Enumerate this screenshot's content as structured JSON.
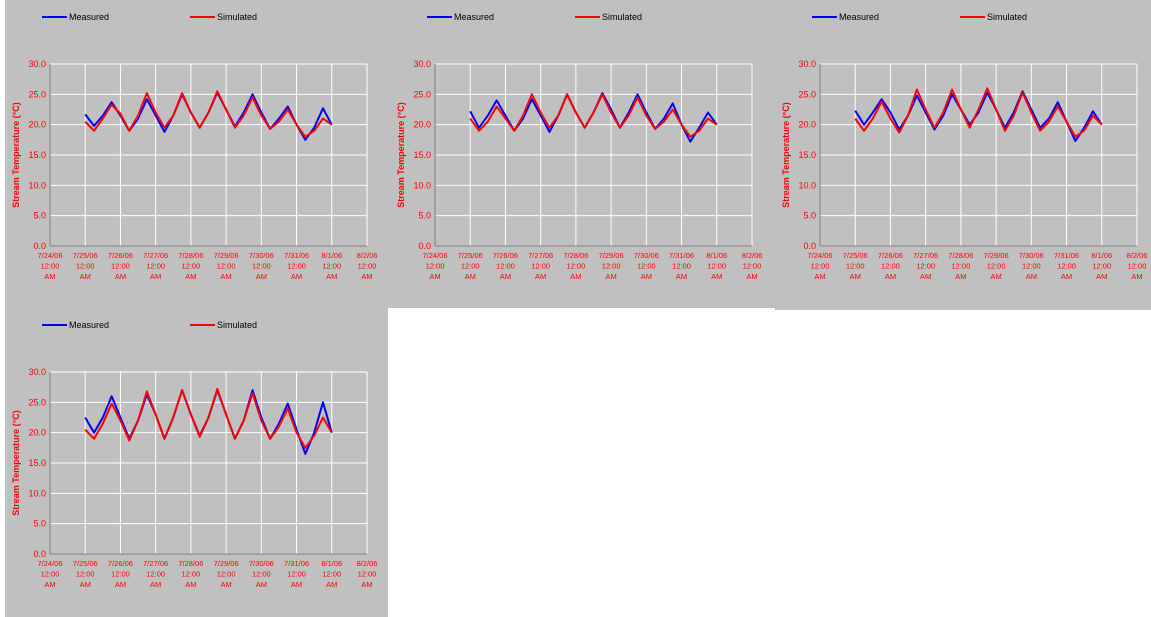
{
  "chart_data": [
    {
      "type": "line",
      "y_label": "Stream Temperature (°C)",
      "x": [
        "7/25/06 12:00 AM",
        "7/25/06 6:00 AM",
        "7/25/06 12:00 PM",
        "7/25/06 6:00 PM",
        "7/26/06 12:00 AM",
        "7/26/06 6:00 AM",
        "7/26/06 12:00 PM",
        "7/26/06 6:00 PM",
        "7/27/06 12:00 AM",
        "7/27/06 6:00 AM",
        "7/27/06 12:00 PM",
        "7/27/06 6:00 PM",
        "7/28/06 12:00 AM",
        "7/28/06 6:00 AM",
        "7/28/06 12:00 PM",
        "7/28/06 6:00 PM",
        "7/29/06 12:00 AM",
        "7/29/06 6:00 AM",
        "7/29/06 12:00 PM",
        "7/29/06 6:00 PM",
        "7/30/06 12:00 AM",
        "7/30/06 6:00 AM",
        "7/30/06 12:00 PM",
        "7/30/06 6:00 PM",
        "7/31/06 12:00 AM",
        "7/31/06 6:00 AM",
        "7/31/06 12:00 PM",
        "7/31/06 6:00 PM",
        "8/1/06 12:00 AM"
      ],
      "series": [
        {
          "name": "Measured",
          "color": "#0000ff",
          "values": [
            21.7,
            19.8,
            21.5,
            23.7,
            21.5,
            19.0,
            21.0,
            24.2,
            21.5,
            18.8,
            21.5,
            25.0,
            22.0,
            19.5,
            22.0,
            25.3,
            22.5,
            19.7,
            22.0,
            25.0,
            22.0,
            19.3,
            21.0,
            23.0,
            20.0,
            17.5,
            19.5,
            22.7,
            20.0
          ]
        },
        {
          "name": "Simulated",
          "color": "#ff0000",
          "values": [
            20.5,
            19.0,
            21.0,
            23.3,
            21.8,
            19.0,
            21.5,
            25.2,
            22.0,
            19.5,
            21.5,
            25.2,
            22.0,
            19.5,
            22.0,
            25.5,
            22.5,
            19.5,
            21.5,
            24.5,
            21.5,
            19.3,
            20.5,
            22.5,
            20.0,
            18.0,
            19.0,
            21.0,
            20.0
          ]
        }
      ],
      "xlim": [
        "7/24/06 12:00 AM",
        "8/2/06 12:00 AM"
      ],
      "xticks": [
        "7/24/06 12:00 AM",
        "7/25/06 12:00 AM",
        "7/26/06 12:00 AM",
        "7/27/06 12:00 AM",
        "7/28/06 12:00 AM",
        "7/29/06 12:00 AM",
        "7/30/06 12:00 AM",
        "7/31/06 12:00 AM",
        "8/1/06 12:00 AM",
        "8/2/06 12:00 AM"
      ],
      "ylim": [
        0,
        30
      ],
      "yticks": [
        {
          "value": 0,
          "label": "0.0"
        },
        {
          "value": 5,
          "label": "5.0"
        },
        {
          "value": 10,
          "label": "10.0"
        },
        {
          "value": 15,
          "label": "15.0"
        },
        {
          "value": 20,
          "label": "20.0"
        },
        {
          "value": 25,
          "label": "25.0"
        },
        {
          "value": 30,
          "label": "30.0"
        }
      ],
      "grid": true,
      "legend": "top"
    },
    {
      "type": "line",
      "y_label": "Stream Temperature (°C)",
      "x": [
        "7/25/06 12:00 AM",
        "7/25/06 6:00 AM",
        "7/25/06 12:00 PM",
        "7/25/06 6:00 PM",
        "7/26/06 12:00 AM",
        "7/26/06 6:00 AM",
        "7/26/06 12:00 PM",
        "7/26/06 6:00 PM",
        "7/27/06 12:00 AM",
        "7/27/06 6:00 AM",
        "7/27/06 12:00 PM",
        "7/27/06 6:00 PM",
        "7/28/06 12:00 AM",
        "7/28/06 6:00 AM",
        "7/28/06 12:00 PM",
        "7/28/06 6:00 PM",
        "7/29/06 12:00 AM",
        "7/29/06 6:00 AM",
        "7/29/06 12:00 PM",
        "7/29/06 6:00 PM",
        "7/30/06 12:00 AM",
        "7/30/06 6:00 AM",
        "7/30/06 12:00 PM",
        "7/30/06 6:00 PM",
        "7/31/06 12:00 AM",
        "7/31/06 6:00 AM",
        "7/31/06 12:00 PM",
        "7/31/06 6:00 PM",
        "8/1/06 12:00 AM"
      ],
      "series": [
        {
          "name": "Measured",
          "color": "#0000ff",
          "values": [
            22.2,
            19.5,
            21.5,
            24.0,
            21.5,
            19.0,
            21.0,
            24.2,
            21.5,
            18.8,
            21.5,
            25.0,
            22.0,
            19.5,
            22.0,
            25.2,
            22.5,
            19.5,
            22.0,
            25.0,
            22.0,
            19.3,
            21.0,
            23.5,
            20.0,
            17.2,
            19.5,
            22.0,
            20.0
          ]
        },
        {
          "name": "Simulated",
          "color": "#ff0000",
          "values": [
            21.0,
            19.0,
            20.5,
            23.0,
            21.0,
            19.0,
            21.5,
            25.0,
            22.0,
            19.5,
            21.5,
            25.0,
            22.0,
            19.5,
            22.0,
            25.0,
            22.0,
            19.5,
            21.5,
            24.5,
            21.5,
            19.3,
            20.5,
            22.5,
            20.0,
            18.0,
            19.0,
            21.0,
            20.0
          ]
        }
      ],
      "xlim": [
        "7/24/06 12:00 AM",
        "8/2/06 12:00 AM"
      ],
      "xticks": [
        "7/24/06 12:00 AM",
        "7/25/06 12:00 AM",
        "7/26/06 12:00 AM",
        "7/27/06 12:00 AM",
        "7/28/06 12:00 AM",
        "7/29/06 12:00 AM",
        "7/30/06 12:00 AM",
        "7/31/06 12:00 AM",
        "8/1/06 12:00 AM",
        "8/2/06 12:00 AM"
      ],
      "ylim": [
        0,
        30
      ],
      "yticks": [
        {
          "value": 0,
          "label": "0.0"
        },
        {
          "value": 5,
          "label": "5.0"
        },
        {
          "value": 10,
          "label": "10.0"
        },
        {
          "value": 15,
          "label": "15.0"
        },
        {
          "value": 20,
          "label": "20.0"
        },
        {
          "value": 25,
          "label": "25.0"
        },
        {
          "value": 30,
          "label": "30.0"
        }
      ],
      "grid": true,
      "legend": "top"
    },
    {
      "type": "line",
      "y_label": "Stream Temperature (°C)",
      "x": [
        "7/25/06 12:00 AM",
        "7/25/06 6:00 AM",
        "7/25/06 12:00 PM",
        "7/25/06 6:00 PM",
        "7/26/06 12:00 AM",
        "7/26/06 6:00 AM",
        "7/26/06 12:00 PM",
        "7/26/06 6:00 PM",
        "7/27/06 12:00 AM",
        "7/27/06 6:00 AM",
        "7/27/06 12:00 PM",
        "7/27/06 6:00 PM",
        "7/28/06 12:00 AM",
        "7/28/06 6:00 AM",
        "7/28/06 12:00 PM",
        "7/28/06 6:00 PM",
        "7/29/06 12:00 AM",
        "7/29/06 6:00 AM",
        "7/29/06 12:00 PM",
        "7/29/06 6:00 PM",
        "7/30/06 12:00 AM",
        "7/30/06 6:00 AM",
        "7/30/06 12:00 PM",
        "7/30/06 6:00 PM",
        "7/31/06 12:00 AM",
        "7/31/06 6:00 AM",
        "7/31/06 12:00 PM",
        "7/31/06 6:00 PM",
        "8/1/06 12:00 AM"
      ],
      "series": [
        {
          "name": "Measured",
          "color": "#0000ff",
          "values": [
            22.3,
            20.0,
            22.0,
            24.2,
            22.0,
            19.2,
            21.5,
            24.8,
            22.0,
            19.2,
            21.5,
            25.0,
            22.5,
            20.0,
            22.0,
            25.3,
            22.5,
            19.5,
            22.0,
            25.5,
            22.5,
            19.5,
            21.0,
            23.7,
            20.5,
            17.3,
            19.5,
            22.2,
            20.0
          ]
        },
        {
          "name": "Simulated",
          "color": "#ff0000",
          "values": [
            21.0,
            19.0,
            21.0,
            23.8,
            21.0,
            18.7,
            21.5,
            25.8,
            22.5,
            19.5,
            22.0,
            25.8,
            22.5,
            19.5,
            22.5,
            26.0,
            22.5,
            19.0,
            21.5,
            25.3,
            22.0,
            19.0,
            20.5,
            23.0,
            20.5,
            18.0,
            19.0,
            21.5,
            20.0
          ]
        }
      ],
      "xlim": [
        "7/24/06 12:00 AM",
        "8/2/06 12:00 AM"
      ],
      "xticks": [
        "7/24/06 12:00 AM",
        "7/25/06 12:00 AM",
        "7/26/06 12:00 AM",
        "7/27/06 12:00 AM",
        "7/28/06 12:00 AM",
        "7/29/06 12:00 AM",
        "7/30/06 12:00 AM",
        "7/31/06 12:00 AM",
        "8/1/06 12:00 AM",
        "8/2/06 12:00 AM"
      ],
      "ylim": [
        0,
        30
      ],
      "yticks": [
        {
          "value": 0,
          "label": "0.0"
        },
        {
          "value": 5,
          "label": "5.0"
        },
        {
          "value": 10,
          "label": "10.0"
        },
        {
          "value": 15,
          "label": "15.0"
        },
        {
          "value": 20,
          "label": "20.0"
        },
        {
          "value": 25,
          "label": "25.0"
        },
        {
          "value": 30,
          "label": "30.0"
        }
      ],
      "grid": true,
      "legend": "top"
    },
    {
      "type": "line",
      "y_label": "Stream Temperature (°C)",
      "x": [
        "7/25/06 12:00 AM",
        "7/25/06 6:00 AM",
        "7/25/06 12:00 PM",
        "7/25/06 6:00 PM",
        "7/26/06 12:00 AM",
        "7/26/06 6:00 AM",
        "7/26/06 12:00 PM",
        "7/26/06 6:00 PM",
        "7/27/06 12:00 AM",
        "7/27/06 6:00 AM",
        "7/27/06 12:00 PM",
        "7/27/06 6:00 PM",
        "7/28/06 12:00 AM",
        "7/28/06 6:00 AM",
        "7/28/06 12:00 PM",
        "7/28/06 6:00 PM",
        "7/29/06 12:00 AM",
        "7/29/06 6:00 AM",
        "7/29/06 12:00 PM",
        "7/29/06 6:00 PM",
        "7/30/06 12:00 AM",
        "7/30/06 6:00 AM",
        "7/30/06 12:00 PM",
        "7/30/06 6:00 PM",
        "7/31/06 12:00 AM",
        "7/31/06 6:00 AM",
        "7/31/06 12:00 PM",
        "7/31/06 6:00 PM",
        "8/1/06 12:00 AM"
      ],
      "series": [
        {
          "name": "Measured",
          "color": "#0000ff",
          "values": [
            22.5,
            20.0,
            22.5,
            26.0,
            22.5,
            19.0,
            22.0,
            26.3,
            23.0,
            19.0,
            22.5,
            27.0,
            23.0,
            19.5,
            22.5,
            27.0,
            23.0,
            19.0,
            22.0,
            27.0,
            22.5,
            19.0,
            21.5,
            24.8,
            20.5,
            16.5,
            20.0,
            25.0,
            20.0
          ]
        },
        {
          "name": "Simulated",
          "color": "#ff0000",
          "values": [
            20.5,
            19.0,
            21.5,
            24.8,
            22.0,
            18.7,
            22.0,
            26.8,
            23.0,
            19.0,
            22.5,
            27.0,
            23.0,
            19.3,
            22.5,
            27.2,
            23.0,
            19.0,
            22.0,
            26.5,
            22.0,
            19.0,
            21.0,
            24.0,
            20.0,
            17.5,
            19.5,
            22.5,
            20.0
          ]
        }
      ],
      "xlim": [
        "7/24/06 12:00 AM",
        "8/2/06 12:00 AM"
      ],
      "xticks": [
        "7/24/06 12:00 AM",
        "7/25/06 12:00 AM",
        "7/26/06 12:00 AM",
        "7/27/06 12:00 AM",
        "7/28/06 12:00 AM",
        "7/29/06 12:00 AM",
        "7/30/06 12:00 AM",
        "7/31/06 12:00 AM",
        "8/1/06 12:00 AM",
        "8/2/06 12:00 AM"
      ],
      "ylim": [
        0,
        30
      ],
      "yticks": [
        {
          "value": 0,
          "label": "0.0"
        },
        {
          "value": 5,
          "label": "5.0"
        },
        {
          "value": 10,
          "label": "10.0"
        },
        {
          "value": 15,
          "label": "15.0"
        },
        {
          "value": 20,
          "label": "20.0"
        },
        {
          "value": 25,
          "label": "25.0"
        },
        {
          "value": 30,
          "label": "30.0"
        }
      ],
      "grid": true,
      "legend": "top"
    }
  ]
}
